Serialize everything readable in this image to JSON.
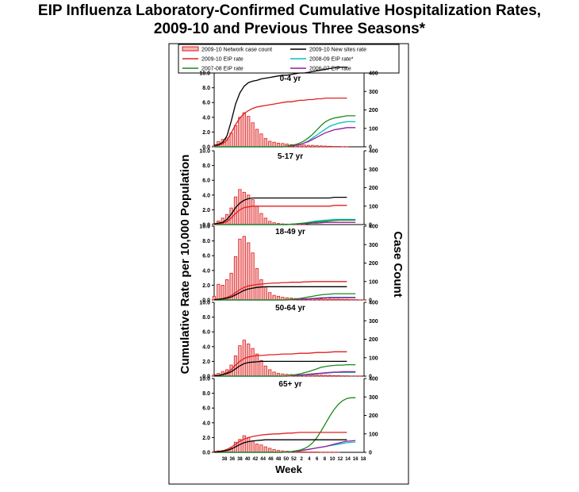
{
  "title": {
    "line1": "EIP Influenza Laboratory-Confirmed Cumulative Hospitalization Rates,",
    "line2": "2009-10 and Previous Three Seasons*"
  },
  "chart_data": {
    "type": "bar",
    "ylabel": "Cumulative Rate per 10,000 Population",
    "y2label": "Case  Count",
    "xlabel": "Week",
    "ylim": [
      0,
      10
    ],
    "y2lim": [
      0,
      400
    ],
    "yticks": [
      "0.0",
      "2.0",
      "4.0",
      "6.0",
      "8.0",
      "10.0"
    ],
    "y2ticks": [
      "0",
      "100",
      "200",
      "300",
      "400"
    ],
    "xticks": [
      "38",
      "36",
      "38",
      "40",
      "42",
      "44",
      "46",
      "48",
      "50",
      "52",
      "2",
      "4",
      "6",
      "8",
      "10",
      "12",
      "14",
      "16",
      "18"
    ],
    "x": [
      35,
      36,
      37,
      38,
      39,
      40,
      41,
      42,
      43,
      44,
      45,
      46,
      47,
      48,
      49,
      50,
      51,
      52,
      53,
      54,
      55,
      56,
      57,
      58,
      59,
      60,
      61,
      62,
      63,
      64,
      65,
      66,
      67,
      68,
      69,
      70
    ],
    "legend": {
      "placement": "top",
      "entries": [
        {
          "label": "2009-10 Network case count",
          "color": "#e02020",
          "kind": "bar"
        },
        {
          "label": "2009-10 New sites rate",
          "color": "#000000",
          "kind": "line"
        },
        {
          "label": "2009-10 EIP rate",
          "color": "#e02020",
          "kind": "line"
        },
        {
          "label": "2008-09 EIP rate*",
          "color": "#00c0c0",
          "kind": "line"
        },
        {
          "label": "2007-08 EIP rate",
          "color": "#1a8a1a",
          "kind": "line"
        },
        {
          "label": "2006-07 EIP rate",
          "color": "#9a1a9a",
          "kind": "line"
        }
      ]
    },
    "panels": [
      {
        "label": "0-4 yr",
        "case_count": [
          5,
          28,
          40,
          48,
          75,
          115,
          160,
          185,
          165,
          130,
          95,
          70,
          45,
          30,
          25,
          20,
          18,
          15,
          12,
          12,
          12,
          10,
          8,
          8,
          6,
          5,
          4,
          3,
          2,
          2,
          1,
          1,
          0,
          0,
          0,
          0
        ],
        "lines": {
          "2009-10 New sites rate": [
            0.2,
            0.3,
            0.6,
            1.5,
            3.5,
            5.8,
            7.3,
            8.2,
            8.7,
            8.9,
            9.0,
            9.2,
            9.3,
            9.4,
            9.5,
            9.6,
            9.7,
            9.7,
            9.8,
            9.9,
            10.0,
            10.0,
            10.1,
            10.2,
            10.3,
            10.4,
            10.5,
            10.6,
            10.7,
            10.8,
            10.8,
            10.8
          ],
          "2009-10 EIP rate": [
            0.1,
            0.2,
            0.4,
            0.9,
            1.9,
            3.0,
            3.9,
            4.5,
            4.9,
            5.2,
            5.4,
            5.5,
            5.6,
            5.7,
            5.8,
            5.9,
            6.0,
            6.1,
            6.1,
            6.2,
            6.3,
            6.3,
            6.4,
            6.4,
            6.5,
            6.5,
            6.6,
            6.6,
            6.6,
            6.6,
            6.6,
            6.6
          ],
          "2008-09 EIP rate*": [
            0,
            0,
            0,
            0,
            0,
            0,
            0,
            0,
            0,
            0,
            0,
            0,
            0,
            0,
            0,
            0,
            0,
            0.1,
            0.1,
            0.2,
            0.3,
            0.5,
            0.8,
            1.2,
            1.6,
            2.0,
            2.4,
            2.8,
            3.0,
            3.2,
            3.3,
            3.4,
            3.4,
            3.4
          ],
          "2007-08 EIP rate": [
            0,
            0,
            0,
            0,
            0,
            0,
            0,
            0,
            0,
            0,
            0,
            0,
            0,
            0,
            0,
            0,
            0,
            0.1,
            0.2,
            0.3,
            0.5,
            0.8,
            1.2,
            1.7,
            2.3,
            2.9,
            3.4,
            3.7,
            3.9,
            4.0,
            4.1,
            4.2,
            4.2,
            4.2
          ],
          "2006-07 EIP rate": [
            0,
            0,
            0,
            0,
            0,
            0,
            0,
            0,
            0,
            0,
            0,
            0,
            0,
            0,
            0,
            0,
            0,
            0.1,
            0.1,
            0.2,
            0.3,
            0.5,
            0.7,
            1.0,
            1.3,
            1.6,
            1.9,
            2.1,
            2.3,
            2.4,
            2.5,
            2.6,
            2.6,
            2.6
          ]
        }
      },
      {
        "label": "5-17 yr",
        "case_count": [
          5,
          20,
          35,
          55,
          90,
          150,
          190,
          175,
          160,
          135,
          100,
          60,
          35,
          18,
          10,
          6,
          4,
          3,
          2,
          2,
          1,
          1,
          0,
          0,
          0,
          0,
          0,
          0,
          0,
          0,
          0,
          0,
          0,
          0,
          0,
          0
        ],
        "lines": {
          "2009-10 New sites rate": [
            0.1,
            0.2,
            0.3,
            0.7,
            1.4,
            2.3,
            2.9,
            3.3,
            3.5,
            3.6,
            3.6,
            3.6,
            3.6,
            3.6,
            3.6,
            3.6,
            3.6,
            3.6,
            3.6,
            3.6,
            3.6,
            3.6,
            3.6,
            3.6,
            3.6,
            3.6,
            3.6,
            3.6,
            3.7,
            3.7,
            3.7,
            3.7
          ],
          "2009-10 EIP rate": [
            0.1,
            0.1,
            0.2,
            0.4,
            0.9,
            1.5,
            2.0,
            2.3,
            2.4,
            2.5,
            2.5,
            2.5,
            2.5,
            2.5,
            2.5,
            2.5,
            2.5,
            2.5,
            2.5,
            2.5,
            2.5,
            2.5,
            2.5,
            2.5,
            2.5,
            2.5,
            2.5,
            2.5,
            2.6,
            2.6,
            2.6,
            2.6
          ],
          "2008-09 EIP rate*": [
            0,
            0,
            0,
            0,
            0,
            0,
            0,
            0,
            0,
            0,
            0,
            0,
            0,
            0,
            0,
            0,
            0,
            0,
            0.05,
            0.1,
            0.15,
            0.2,
            0.3,
            0.4,
            0.5,
            0.55,
            0.6,
            0.65,
            0.7,
            0.7,
            0.7,
            0.7,
            0.7,
            0.7
          ],
          "2007-08 EIP rate": [
            0,
            0,
            0,
            0,
            0,
            0,
            0,
            0,
            0,
            0,
            0,
            0,
            0,
            0,
            0,
            0,
            0,
            0,
            0.05,
            0.1,
            0.15,
            0.2,
            0.25,
            0.3,
            0.35,
            0.4,
            0.45,
            0.5,
            0.55,
            0.6,
            0.6,
            0.6,
            0.6,
            0.6
          ],
          "2006-07 EIP rate": [
            0,
            0,
            0,
            0,
            0,
            0,
            0,
            0,
            0,
            0,
            0,
            0,
            0,
            0,
            0,
            0,
            0,
            0,
            0.05,
            0.05,
            0.1,
            0.1,
            0.15,
            0.2,
            0.2,
            0.25,
            0.3,
            0.3,
            0.3,
            0.3,
            0.3,
            0.3,
            0.3,
            0.3
          ]
        }
      },
      {
        "label": "18-49 yr",
        "case_count": [
          20,
          85,
          80,
          110,
          145,
          235,
          330,
          345,
          310,
          255,
          170,
          110,
          70,
          40,
          25,
          20,
          15,
          12,
          10,
          8,
          8,
          7,
          7,
          6,
          6,
          6,
          5,
          5,
          4,
          4,
          3,
          3,
          2,
          2,
          1,
          1
        ],
        "lines": {
          "2009-10 New sites rate": [
            0.05,
            0.1,
            0.15,
            0.25,
            0.4,
            0.7,
            1.0,
            1.3,
            1.5,
            1.6,
            1.7,
            1.75,
            1.8,
            1.8,
            1.8,
            1.8,
            1.8,
            1.8,
            1.8,
            1.8,
            1.8,
            1.8,
            1.8,
            1.8,
            1.8,
            1.8,
            1.8,
            1.8,
            1.8,
            1.8,
            1.8,
            1.8
          ],
          "2009-10 EIP rate": [
            0.05,
            0.1,
            0.2,
            0.35,
            0.6,
            1.0,
            1.4,
            1.7,
            1.9,
            2.0,
            2.1,
            2.15,
            2.2,
            2.25,
            2.3,
            2.3,
            2.35,
            2.35,
            2.4,
            2.4,
            2.4,
            2.45,
            2.45,
            2.5,
            2.5,
            2.5,
            2.5,
            2.5,
            2.5,
            2.5,
            2.5,
            2.5
          ],
          "2008-09 EIP rate*": [
            0,
            0,
            0,
            0,
            0,
            0,
            0,
            0,
            0,
            0,
            0,
            0,
            0,
            0,
            0,
            0,
            0,
            0,
            0.05,
            0.05,
            0.1,
            0.1,
            0.15,
            0.2,
            0.25,
            0.3,
            0.3,
            0.35,
            0.35,
            0.35,
            0.35,
            0.35,
            0.35,
            0.35
          ],
          "2007-08 EIP rate": [
            0,
            0,
            0,
            0,
            0,
            0,
            0,
            0,
            0,
            0,
            0,
            0,
            0,
            0,
            0,
            0,
            0,
            0.05,
            0.1,
            0.15,
            0.2,
            0.3,
            0.4,
            0.5,
            0.6,
            0.7,
            0.75,
            0.8,
            0.85,
            0.85,
            0.85,
            0.85,
            0.85,
            0.85
          ],
          "2006-07 EIP rate": [
            0,
            0,
            0,
            0,
            0,
            0,
            0,
            0,
            0,
            0,
            0,
            0,
            0,
            0,
            0,
            0,
            0,
            0,
            0.05,
            0.05,
            0.1,
            0.1,
            0.15,
            0.2,
            0.2,
            0.25,
            0.3,
            0.3,
            0.3,
            0.3,
            0.3,
            0.3,
            0.3,
            0.3
          ]
        }
      },
      {
        "label": "50-64 yr",
        "case_count": [
          8,
          15,
          25,
          35,
          60,
          110,
          165,
          195,
          175,
          150,
          120,
          85,
          55,
          35,
          22,
          15,
          12,
          10,
          9,
          8,
          7,
          7,
          6,
          6,
          5,
          5,
          4,
          4,
          3,
          3,
          2,
          2,
          1,
          1,
          1,
          0
        ],
        "lines": {
          "2009-10 New sites rate": [
            0.05,
            0.1,
            0.2,
            0.35,
            0.6,
            1.0,
            1.4,
            1.7,
            1.85,
            1.9,
            1.95,
            2.0,
            2.0,
            2.0,
            2.0,
            2.0,
            2.0,
            2.0,
            2.0,
            2.0,
            2.0,
            2.0,
            2.0,
            2.0,
            2.0,
            2.0,
            2.0,
            2.0,
            2.0,
            2.0,
            2.0,
            2.0
          ],
          "2009-10 EIP rate": [
            0.05,
            0.1,
            0.25,
            0.5,
            0.9,
            1.5,
            2.0,
            2.4,
            2.6,
            2.7,
            2.8,
            2.8,
            2.85,
            2.9,
            2.9,
            2.95,
            3.0,
            3.0,
            3.0,
            3.05,
            3.1,
            3.1,
            3.1,
            3.15,
            3.2,
            3.2,
            3.2,
            3.25,
            3.3,
            3.3,
            3.3,
            3.3
          ],
          "2008-09 EIP rate*": [
            0,
            0,
            0,
            0,
            0,
            0,
            0,
            0,
            0,
            0,
            0,
            0,
            0,
            0,
            0,
            0,
            0,
            0,
            0.05,
            0.1,
            0.1,
            0.15,
            0.2,
            0.25,
            0.3,
            0.35,
            0.4,
            0.45,
            0.5,
            0.5,
            0.5,
            0.5,
            0.5,
            0.5
          ],
          "2007-08 EIP rate": [
            0,
            0,
            0,
            0,
            0,
            0,
            0,
            0,
            0,
            0,
            0,
            0,
            0,
            0,
            0,
            0,
            0,
            0.05,
            0.1,
            0.2,
            0.3,
            0.45,
            0.6,
            0.8,
            1.0,
            1.2,
            1.3,
            1.4,
            1.45,
            1.5,
            1.5,
            1.55,
            1.55,
            1.55
          ],
          "2006-07 EIP rate": [
            0,
            0,
            0,
            0,
            0,
            0,
            0,
            0,
            0,
            0,
            0,
            0,
            0,
            0,
            0,
            0,
            0,
            0,
            0.05,
            0.1,
            0.15,
            0.2,
            0.25,
            0.3,
            0.35,
            0.4,
            0.45,
            0.5,
            0.55,
            0.55,
            0.6,
            0.6,
            0.6,
            0.6
          ]
        }
      },
      {
        "label": "65+ yr",
        "case_count": [
          4,
          8,
          10,
          15,
          25,
          55,
          70,
          90,
          80,
          60,
          45,
          40,
          30,
          22,
          15,
          10,
          8,
          6,
          5,
          4,
          3,
          3,
          2,
          2,
          2,
          1,
          1,
          1,
          1,
          1,
          0,
          0,
          0,
          0,
          0,
          0
        ],
        "lines": {
          "2009-10 New sites rate": [
            0.05,
            0.1,
            0.15,
            0.25,
            0.45,
            0.75,
            1.05,
            1.3,
            1.45,
            1.55,
            1.6,
            1.65,
            1.7,
            1.7,
            1.7,
            1.7,
            1.7,
            1.7,
            1.7,
            1.7,
            1.7,
            1.7,
            1.7,
            1.7,
            1.7,
            1.7,
            1.7,
            1.7,
            1.7,
            1.7,
            1.7,
            1.7
          ],
          "2009-10 EIP rate": [
            0.05,
            0.1,
            0.2,
            0.4,
            0.7,
            1.1,
            1.5,
            1.8,
            2.0,
            2.15,
            2.25,
            2.35,
            2.4,
            2.45,
            2.5,
            2.5,
            2.55,
            2.6,
            2.6,
            2.65,
            2.7,
            2.7,
            2.7,
            2.7,
            2.7,
            2.7,
            2.7,
            2.7,
            2.7,
            2.7,
            2.7,
            2.7
          ],
          "2008-09 EIP rate*": [
            0,
            0,
            0,
            0,
            0,
            0,
            0,
            0,
            0,
            0,
            0,
            0,
            0,
            0,
            0,
            0,
            0,
            0.05,
            0.1,
            0.15,
            0.2,
            0.3,
            0.4,
            0.5,
            0.6,
            0.7,
            0.8,
            0.9,
            1.0,
            1.1,
            1.2,
            1.3,
            1.35,
            1.4
          ],
          "2007-08 EIP rate": [
            0,
            0,
            0,
            0,
            0,
            0,
            0,
            0,
            0,
            0,
            0,
            0,
            0,
            0,
            0,
            0,
            0,
            0.05,
            0.1,
            0.2,
            0.3,
            0.5,
            0.8,
            1.3,
            2.0,
            2.9,
            3.9,
            4.9,
            5.8,
            6.5,
            7.0,
            7.3,
            7.4,
            7.4
          ],
          "2006-07 EIP rate": [
            0,
            0,
            0,
            0,
            0,
            0,
            0,
            0,
            0,
            0,
            0,
            0,
            0,
            0,
            0,
            0,
            0,
            0.05,
            0.1,
            0.15,
            0.2,
            0.3,
            0.4,
            0.5,
            0.6,
            0.7,
            0.8,
            0.95,
            1.1,
            1.25,
            1.4,
            1.5,
            1.55,
            1.6
          ]
        }
      }
    ]
  }
}
